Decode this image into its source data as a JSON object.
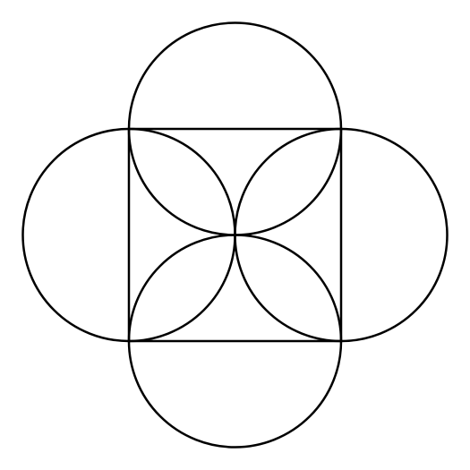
{
  "diagram": {
    "type": "geometric-construction",
    "square": {
      "count": 1
    },
    "circles": [
      {
        "name": "top",
        "position": "top-edge"
      },
      {
        "name": "bottom",
        "position": "bottom-edge"
      },
      {
        "name": "left",
        "position": "left-edge"
      },
      {
        "name": "right",
        "position": "right-edge"
      }
    ],
    "stroke_color": "#000000",
    "background_color": "#ffffff"
  }
}
